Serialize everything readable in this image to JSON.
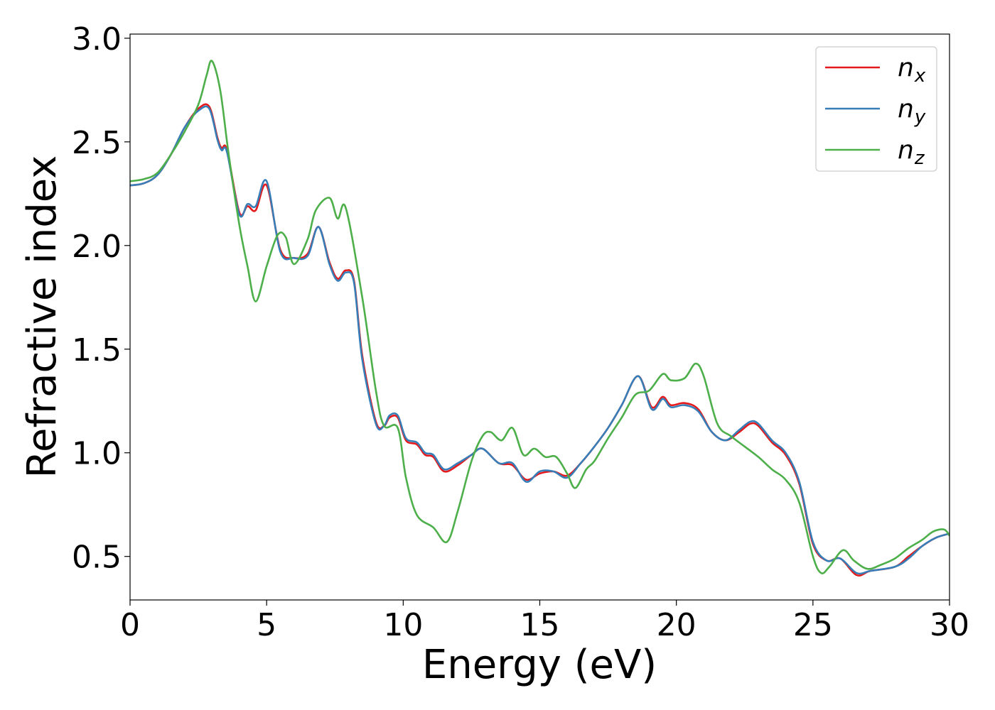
{
  "chart_data": {
    "type": "line",
    "xlabel": "Energy (eV)",
    "ylabel": "Refractive index",
    "xlim": [
      0,
      30
    ],
    "ylim": [
      0.29,
      3.02
    ],
    "x_ticks": [
      "0",
      "5",
      "10",
      "15",
      "20",
      "25",
      "30"
    ],
    "y_ticks": [
      "0.5",
      "1.0",
      "1.5",
      "2.0",
      "2.5",
      "3.0"
    ],
    "grid": false,
    "legend_position": "top-right",
    "series": [
      {
        "name": "n_x",
        "label_base": "n",
        "label_sub": "x",
        "color": "#e41a1c",
        "points": [
          [
            0,
            2.29
          ],
          [
            0.5,
            2.3
          ],
          [
            1.0,
            2.34
          ],
          [
            1.5,
            2.44
          ],
          [
            2.0,
            2.57
          ],
          [
            2.5,
            2.66
          ],
          [
            2.9,
            2.67
          ],
          [
            3.2,
            2.52
          ],
          [
            3.35,
            2.47
          ],
          [
            3.55,
            2.46
          ],
          [
            4.0,
            2.16
          ],
          [
            4.3,
            2.19
          ],
          [
            4.6,
            2.17
          ],
          [
            5.0,
            2.29
          ],
          [
            5.5,
            1.98
          ],
          [
            6.0,
            1.94
          ],
          [
            6.5,
            1.96
          ],
          [
            6.9,
            2.09
          ],
          [
            7.3,
            1.92
          ],
          [
            7.6,
            1.84
          ],
          [
            7.9,
            1.88
          ],
          [
            8.2,
            1.83
          ],
          [
            8.5,
            1.47
          ],
          [
            9.0,
            1.15
          ],
          [
            9.3,
            1.13
          ],
          [
            9.5,
            1.17
          ],
          [
            9.8,
            1.17
          ],
          [
            10.1,
            1.06
          ],
          [
            10.5,
            1.04
          ],
          [
            10.8,
            0.99
          ],
          [
            11.1,
            0.98
          ],
          [
            11.5,
            0.91
          ],
          [
            12.0,
            0.94
          ],
          [
            12.5,
            0.99
          ],
          [
            12.9,
            1.02
          ],
          [
            13.5,
            0.95
          ],
          [
            14.0,
            0.94
          ],
          [
            14.5,
            0.87
          ],
          [
            15.0,
            0.9
          ],
          [
            15.5,
            0.91
          ],
          [
            16.0,
            0.89
          ],
          [
            16.5,
            0.95
          ],
          [
            17.0,
            1.03
          ],
          [
            17.5,
            1.12
          ],
          [
            18.0,
            1.23
          ],
          [
            18.6,
            1.37
          ],
          [
            19.1,
            1.22
          ],
          [
            19.5,
            1.27
          ],
          [
            19.8,
            1.23
          ],
          [
            20.3,
            1.24
          ],
          [
            20.8,
            1.21
          ],
          [
            21.3,
            1.1
          ],
          [
            21.8,
            1.06
          ],
          [
            22.3,
            1.1
          ],
          [
            22.7,
            1.14
          ],
          [
            23.0,
            1.13
          ],
          [
            23.5,
            1.05
          ],
          [
            24.0,
            0.99
          ],
          [
            24.5,
            0.85
          ],
          [
            25.0,
            0.56
          ],
          [
            25.5,
            0.48
          ],
          [
            26.0,
            0.49
          ],
          [
            26.6,
            0.41
          ],
          [
            27.1,
            0.43
          ],
          [
            28.0,
            0.45
          ],
          [
            28.5,
            0.5
          ],
          [
            29.0,
            0.55
          ],
          [
            29.5,
            0.59
          ],
          [
            30.0,
            0.61
          ]
        ]
      },
      {
        "name": "n_y",
        "label_base": "n",
        "label_sub": "y",
        "color": "#377eb8",
        "points": [
          [
            0,
            2.29
          ],
          [
            0.5,
            2.3
          ],
          [
            1.0,
            2.34
          ],
          [
            1.5,
            2.44
          ],
          [
            2.0,
            2.57
          ],
          [
            2.5,
            2.65
          ],
          [
            2.9,
            2.66
          ],
          [
            3.2,
            2.51
          ],
          [
            3.35,
            2.46
          ],
          [
            3.55,
            2.45
          ],
          [
            4.0,
            2.15
          ],
          [
            4.3,
            2.2
          ],
          [
            4.6,
            2.19
          ],
          [
            5.0,
            2.31
          ],
          [
            5.5,
            1.97
          ],
          [
            6.0,
            1.94
          ],
          [
            6.5,
            1.95
          ],
          [
            6.9,
            2.09
          ],
          [
            7.3,
            1.91
          ],
          [
            7.6,
            1.83
          ],
          [
            7.9,
            1.87
          ],
          [
            8.2,
            1.82
          ],
          [
            8.5,
            1.45
          ],
          [
            9.0,
            1.14
          ],
          [
            9.3,
            1.13
          ],
          [
            9.5,
            1.18
          ],
          [
            9.8,
            1.18
          ],
          [
            10.1,
            1.07
          ],
          [
            10.5,
            1.05
          ],
          [
            10.8,
            1.0
          ],
          [
            11.1,
            0.99
          ],
          [
            11.5,
            0.92
          ],
          [
            12.0,
            0.95
          ],
          [
            12.5,
            0.99
          ],
          [
            12.9,
            1.02
          ],
          [
            13.5,
            0.95
          ],
          [
            14.0,
            0.95
          ],
          [
            14.5,
            0.86
          ],
          [
            15.0,
            0.91
          ],
          [
            15.5,
            0.91
          ],
          [
            16.0,
            0.88
          ],
          [
            16.5,
            0.95
          ],
          [
            17.0,
            1.03
          ],
          [
            17.5,
            1.12
          ],
          [
            18.0,
            1.23
          ],
          [
            18.6,
            1.37
          ],
          [
            19.1,
            1.21
          ],
          [
            19.5,
            1.26
          ],
          [
            19.8,
            1.22
          ],
          [
            20.3,
            1.23
          ],
          [
            20.8,
            1.2
          ],
          [
            21.3,
            1.1
          ],
          [
            21.8,
            1.06
          ],
          [
            22.3,
            1.11
          ],
          [
            22.7,
            1.15
          ],
          [
            23.0,
            1.14
          ],
          [
            23.5,
            1.06
          ],
          [
            24.0,
            1.0
          ],
          [
            24.5,
            0.86
          ],
          [
            25.0,
            0.57
          ],
          [
            25.5,
            0.48
          ],
          [
            26.0,
            0.49
          ],
          [
            26.6,
            0.42
          ],
          [
            27.1,
            0.43
          ],
          [
            28.0,
            0.45
          ],
          [
            28.5,
            0.49
          ],
          [
            29.0,
            0.55
          ],
          [
            29.5,
            0.59
          ],
          [
            30.0,
            0.61
          ]
        ]
      },
      {
        "name": "n_z",
        "label_base": "n",
        "label_sub": "z",
        "color": "#4daf4a",
        "points": [
          [
            0,
            2.31
          ],
          [
            0.5,
            2.32
          ],
          [
            1.0,
            2.35
          ],
          [
            1.5,
            2.44
          ],
          [
            2.0,
            2.55
          ],
          [
            2.5,
            2.68
          ],
          [
            2.8,
            2.82
          ],
          [
            3.0,
            2.89
          ],
          [
            3.3,
            2.75
          ],
          [
            3.6,
            2.45
          ],
          [
            4.0,
            2.1
          ],
          [
            4.3,
            1.9
          ],
          [
            4.6,
            1.73
          ],
          [
            5.0,
            1.9
          ],
          [
            5.4,
            2.05
          ],
          [
            5.7,
            2.04
          ],
          [
            6.0,
            1.91
          ],
          [
            6.5,
            2.03
          ],
          [
            6.8,
            2.17
          ],
          [
            7.3,
            2.23
          ],
          [
            7.6,
            2.13
          ],
          [
            7.9,
            2.18
          ],
          [
            8.5,
            1.75
          ],
          [
            9.0,
            1.3
          ],
          [
            9.3,
            1.13
          ],
          [
            9.8,
            1.12
          ],
          [
            10.1,
            0.88
          ],
          [
            10.5,
            0.7
          ],
          [
            11.1,
            0.64
          ],
          [
            11.6,
            0.57
          ],
          [
            12.0,
            0.72
          ],
          [
            12.5,
            0.96
          ],
          [
            12.9,
            1.08
          ],
          [
            13.2,
            1.1
          ],
          [
            13.6,
            1.06
          ],
          [
            14.0,
            1.12
          ],
          [
            14.4,
            0.99
          ],
          [
            14.8,
            1.02
          ],
          [
            15.2,
            0.98
          ],
          [
            15.6,
            0.98
          ],
          [
            16.0,
            0.9
          ],
          [
            16.3,
            0.83
          ],
          [
            16.7,
            0.92
          ],
          [
            17.0,
            0.96
          ],
          [
            17.5,
            1.07
          ],
          [
            18.0,
            1.17
          ],
          [
            18.5,
            1.28
          ],
          [
            19.0,
            1.3
          ],
          [
            19.5,
            1.38
          ],
          [
            19.8,
            1.35
          ],
          [
            20.3,
            1.36
          ],
          [
            20.7,
            1.43
          ],
          [
            21.0,
            1.37
          ],
          [
            21.5,
            1.14
          ],
          [
            22.0,
            1.08
          ],
          [
            22.5,
            1.03
          ],
          [
            23.0,
            0.98
          ],
          [
            23.5,
            0.92
          ],
          [
            24.0,
            0.87
          ],
          [
            24.5,
            0.76
          ],
          [
            25.0,
            0.5
          ],
          [
            25.3,
            0.42
          ],
          [
            25.6,
            0.45
          ],
          [
            26.1,
            0.53
          ],
          [
            26.5,
            0.48
          ],
          [
            27.0,
            0.44
          ],
          [
            27.5,
            0.46
          ],
          [
            28.0,
            0.49
          ],
          [
            28.5,
            0.54
          ],
          [
            29.0,
            0.58
          ],
          [
            29.4,
            0.62
          ],
          [
            29.8,
            0.63
          ],
          [
            30.0,
            0.6
          ]
        ]
      }
    ]
  }
}
